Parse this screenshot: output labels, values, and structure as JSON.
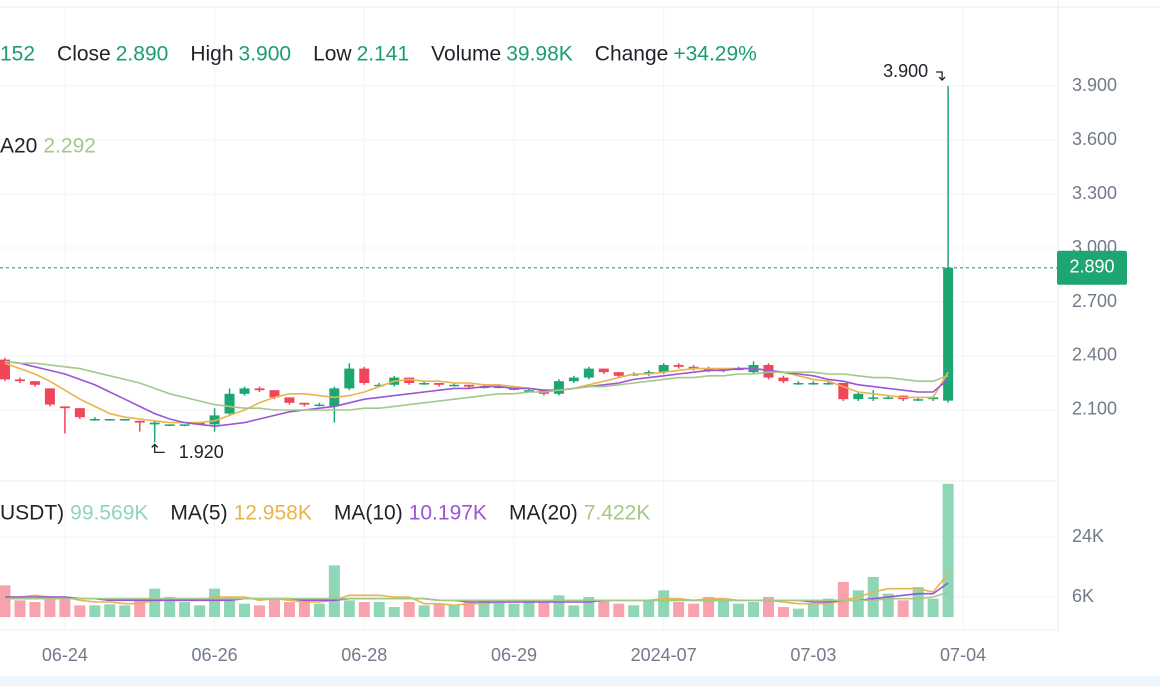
{
  "chart_data": {
    "type": "candlestick",
    "header": [
      {
        "value": "152"
      },
      {
        "label": "Close",
        "value": "2.890"
      },
      {
        "label": "High",
        "value": "3.900"
      },
      {
        "label": "Low",
        "value": "2.141"
      },
      {
        "label": "Volume",
        "value": "39.98K"
      },
      {
        "label": "Change",
        "value": "+34.29%"
      }
    ],
    "ma_legend": {
      "label": "A20",
      "value": "2.292"
    },
    "volume_legend": [
      {
        "label": "USDT)",
        "value": "99.569K"
      },
      {
        "label": "MA(5)",
        "value": "12.958K"
      },
      {
        "label": "MA(10)",
        "value": "10.197K"
      },
      {
        "label": "MA(20)",
        "value": "7.422K"
      }
    ],
    "categories": [
      null,
      null,
      null,
      null,
      "06-24",
      null,
      null,
      null,
      null,
      null,
      null,
      null,
      null,
      null,
      "06-26",
      null,
      null,
      null,
      null,
      null,
      null,
      null,
      null,
      null,
      "06-28",
      null,
      null,
      null,
      null,
      null,
      null,
      null,
      null,
      null,
      "06-29",
      null,
      null,
      null,
      null,
      null,
      null,
      null,
      null,
      null,
      "2024-07",
      null,
      null,
      null,
      null,
      null,
      null,
      null,
      null,
      null,
      "07-03",
      null,
      null,
      null,
      null,
      null,
      null,
      null,
      null,
      null,
      "07-04"
    ],
    "open": [
      2.38,
      2.27,
      2.26,
      2.22,
      2.12,
      2.11,
      2.05,
      2.05,
      2.05,
      2.04,
      2.02,
      2.02,
      2.02,
      2.03,
      2.02,
      2.08,
      2.19,
      2.22,
      2.21,
      2.17,
      2.14,
      2.13,
      2.12,
      2.22,
      2.33,
      2.24,
      2.24,
      2.28,
      2.25,
      2.25,
      2.24,
      2.24,
      2.23,
      2.23,
      2.22,
      2.21,
      2.21,
      2.19,
      2.26,
      2.28,
      2.33,
      2.31,
      2.3,
      2.3,
      2.31,
      2.35,
      2.34,
      2.33,
      2.32,
      2.33,
      2.31,
      2.35,
      2.28,
      2.25,
      2.25,
      2.25,
      2.25,
      2.16,
      2.17,
      2.17,
      2.18,
      2.16,
      2.16,
      2.152,
      null
    ],
    "high": [
      2.39,
      2.28,
      2.26,
      2.22,
      2.12,
      2.11,
      2.06,
      2.05,
      2.05,
      2.04,
      2.04,
      2.02,
      2.02,
      2.03,
      2.11,
      2.22,
      2.23,
      2.23,
      2.21,
      2.17,
      2.14,
      2.14,
      2.23,
      2.36,
      2.34,
      2.25,
      2.29,
      2.28,
      2.26,
      2.25,
      2.25,
      2.24,
      2.24,
      2.24,
      2.23,
      2.22,
      2.21,
      2.27,
      2.29,
      2.34,
      2.33,
      2.31,
      2.31,
      2.32,
      2.36,
      2.36,
      2.35,
      2.34,
      2.33,
      2.34,
      2.37,
      2.36,
      2.29,
      2.26,
      2.26,
      2.26,
      2.25,
      2.2,
      2.21,
      2.18,
      2.18,
      2.17,
      2.18,
      3.9,
      null
    ],
    "low": [
      2.26,
      2.25,
      2.23,
      2.12,
      1.97,
      2.05,
      2.04,
      2.04,
      2.04,
      1.98,
      1.92,
      2.01,
      2.01,
      2.02,
      1.98,
      2.07,
      2.18,
      2.2,
      2.16,
      2.13,
      2.12,
      2.12,
      2.03,
      2.21,
      2.24,
      2.23,
      2.23,
      2.24,
      2.24,
      2.23,
      2.23,
      2.22,
      2.22,
      2.22,
      2.21,
      2.2,
      2.18,
      2.18,
      2.25,
      2.27,
      2.3,
      2.28,
      2.29,
      2.29,
      2.3,
      2.33,
      2.32,
      2.31,
      2.31,
      2.32,
      2.3,
      2.27,
      2.25,
      2.24,
      2.24,
      2.24,
      2.15,
      2.15,
      2.15,
      2.16,
      2.15,
      2.15,
      2.15,
      2.141,
      null
    ],
    "close": [
      2.27,
      2.26,
      2.24,
      2.13,
      2.11,
      2.06,
      2.05,
      2.05,
      2.05,
      2.03,
      2.03,
      2.02,
      2.02,
      2.03,
      2.07,
      2.19,
      2.22,
      2.21,
      2.17,
      2.14,
      2.13,
      2.13,
      2.22,
      2.33,
      2.25,
      2.24,
      2.28,
      2.25,
      2.25,
      2.24,
      2.24,
      2.23,
      2.23,
      2.23,
      2.22,
      2.21,
      2.19,
      2.26,
      2.28,
      2.33,
      2.31,
      2.29,
      2.3,
      2.31,
      2.35,
      2.34,
      2.33,
      2.32,
      2.33,
      2.33,
      2.35,
      2.28,
      2.26,
      2.25,
      2.25,
      2.25,
      2.16,
      2.19,
      2.17,
      2.17,
      2.16,
      2.16,
      2.17,
      2.89,
      null
    ],
    "volume": [
      9500,
      5000,
      4500,
      6000,
      5500,
      3500,
      3500,
      3800,
      3500,
      5000,
      8500,
      6000,
      4500,
      3500,
      8500,
      6000,
      4000,
      3500,
      5500,
      4500,
      5000,
      4000,
      15500,
      5000,
      4500,
      4500,
      3000,
      4500,
      3500,
      4000,
      3500,
      4500,
      5000,
      4500,
      4000,
      5000,
      4500,
      6500,
      3500,
      6000,
      5000,
      4000,
      3500,
      5000,
      8000,
      4500,
      4000,
      6000,
      5000,
      4000,
      4500,
      6000,
      3000,
      2500,
      4000,
      5500,
      10500,
      8000,
      12000,
      7000,
      5000,
      9000,
      5500,
      39980,
      null
    ],
    "series": [
      {
        "color": "#e9b44c",
        "values": [
          2.36,
          2.33,
          2.3,
          2.26,
          2.21,
          2.16,
          2.12,
          2.08,
          2.06,
          2.05,
          2.04,
          2.03,
          2.03,
          2.03,
          2.04,
          2.07,
          2.1,
          2.14,
          2.17,
          2.19,
          2.19,
          2.18,
          2.17,
          2.18,
          2.2,
          2.23,
          2.26,
          2.27,
          2.26,
          2.26,
          2.25,
          2.25,
          2.24,
          2.24,
          2.23,
          2.22,
          2.21,
          2.21,
          2.22,
          2.24,
          2.26,
          2.28,
          2.3,
          2.3,
          2.31,
          2.32,
          2.33,
          2.33,
          2.33,
          2.33,
          2.33,
          2.32,
          2.31,
          2.29,
          2.27,
          2.26,
          2.23,
          2.2,
          2.19,
          2.18,
          2.17,
          2.17,
          2.17,
          2.31,
          null
        ]
      },
      {
        "color": "#9b55d6",
        "values": [
          2.37,
          2.36,
          2.34,
          2.32,
          2.3,
          2.27,
          2.24,
          2.2,
          2.16,
          2.12,
          2.08,
          2.05,
          2.03,
          2.02,
          2.01,
          2.02,
          2.03,
          2.05,
          2.07,
          2.09,
          2.1,
          2.11,
          2.12,
          2.14,
          2.16,
          2.17,
          2.18,
          2.19,
          2.2,
          2.21,
          2.22,
          2.22,
          2.23,
          2.23,
          2.22,
          2.22,
          2.21,
          2.21,
          2.22,
          2.23,
          2.24,
          2.25,
          2.27,
          2.28,
          2.29,
          2.3,
          2.31,
          2.32,
          2.32,
          2.33,
          2.33,
          2.32,
          2.31,
          2.3,
          2.29,
          2.27,
          2.26,
          2.24,
          2.23,
          2.22,
          2.21,
          2.2,
          2.2,
          2.27,
          null
        ]
      },
      {
        "color": "#a3c98a",
        "values": [
          2.37,
          2.36,
          2.36,
          2.35,
          2.34,
          2.33,
          2.31,
          2.29,
          2.27,
          2.25,
          2.22,
          2.19,
          2.17,
          2.15,
          2.13,
          2.12,
          2.11,
          2.11,
          2.1,
          2.1,
          2.1,
          2.1,
          2.1,
          2.1,
          2.11,
          2.11,
          2.12,
          2.13,
          2.14,
          2.15,
          2.16,
          2.17,
          2.18,
          2.19,
          2.19,
          2.2,
          2.2,
          2.21,
          2.22,
          2.23,
          2.23,
          2.24,
          2.25,
          2.26,
          2.27,
          2.28,
          2.28,
          2.29,
          2.29,
          2.3,
          2.3,
          2.31,
          2.31,
          2.31,
          2.31,
          2.3,
          2.3,
          2.29,
          2.28,
          2.28,
          2.27,
          2.26,
          2.26,
          2.29,
          null
        ]
      }
    ],
    "volume_series": [
      {
        "color": "#e9b44c",
        "values": [
          6000,
          6000,
          6500,
          6000,
          6000,
          5000,
          4500,
          4500,
          4000,
          4000,
          5000,
          5000,
          5000,
          5000,
          6000,
          6000,
          6000,
          5000,
          5500,
          5000,
          4500,
          4500,
          5000,
          6500,
          6500,
          6500,
          6000,
          6000,
          4000,
          4000,
          3500,
          4000,
          4000,
          4500,
          4500,
          4500,
          4500,
          5000,
          5000,
          5000,
          5000,
          5000,
          5000,
          5000,
          5500,
          5500,
          5000,
          5500,
          5500,
          5000,
          5000,
          5000,
          4500,
          4000,
          4000,
          4000,
          5000,
          6000,
          7500,
          8500,
          8500,
          8500,
          7500,
          12958,
          null
        ]
      },
      {
        "color": "#9b55d6",
        "values": [
          6000,
          6000,
          6000,
          6000,
          6000,
          5500,
          5500,
          5000,
          5000,
          5000,
          5000,
          5000,
          5000,
          5000,
          5000,
          5000,
          5500,
          5500,
          5500,
          5500,
          5000,
          5000,
          5000,
          5500,
          5500,
          5500,
          5500,
          5500,
          5500,
          5000,
          5000,
          4500,
          4500,
          4500,
          4500,
          4500,
          4500,
          4500,
          4500,
          4500,
          5000,
          5000,
          5000,
          5000,
          5000,
          5000,
          5000,
          5000,
          5000,
          5000,
          5000,
          5000,
          5000,
          5000,
          4500,
          4500,
          5000,
          5000,
          5500,
          6000,
          6500,
          7000,
          7000,
          10197,
          null
        ]
      },
      {
        "color": "#a3c98a",
        "values": [
          5500,
          5500,
          5500,
          5500,
          5500,
          5500,
          5500,
          5500,
          5500,
          5500,
          5500,
          5500,
          5500,
          5500,
          5500,
          5500,
          5500,
          5500,
          5500,
          5500,
          5500,
          5500,
          5500,
          5500,
          5500,
          5500,
          5500,
          5500,
          5500,
          5000,
          5000,
          5000,
          5000,
          5000,
          5000,
          5000,
          5000,
          5000,
          5000,
          5000,
          5000,
          5000,
          5000,
          5000,
          5000,
          5000,
          5000,
          5000,
          5000,
          5000,
          5000,
          5000,
          5000,
          5000,
          5000,
          5000,
          5000,
          5000,
          5000,
          5500,
          5500,
          5500,
          6000,
          7422,
          null
        ]
      }
    ],
    "up_color": "#1ea672",
    "down_color": "#f0465a",
    "volume_up_color": "#8fd6b7",
    "volume_down_color": "#f7a3ad",
    "ylim": [
      1.711,
      4.378
    ],
    "yticks": [
      {
        "value": 2.1,
        "label": "2.100"
      },
      {
        "value": 2.4,
        "label": "2.400"
      },
      {
        "value": 2.7,
        "label": "2.700"
      },
      {
        "value": 3.0,
        "label": "3.000"
      },
      {
        "value": 3.3,
        "label": "3.300"
      },
      {
        "value": 3.6,
        "label": "3.600"
      },
      {
        "value": 3.9,
        "label": "3.900"
      }
    ],
    "y2lim": [
      -3900,
      40500
    ],
    "y2ticks": [
      {
        "value": 6000,
        "label": "6K"
      },
      {
        "value": 24000,
        "label": "24K"
      }
    ],
    "last_price": {
      "value": 2.89,
      "label": "2.890"
    },
    "high_marker": {
      "value": 3.9,
      "label": "3.900"
    },
    "low_marker": {
      "value": 1.92,
      "label": "1.920"
    },
    "grid": true
  }
}
